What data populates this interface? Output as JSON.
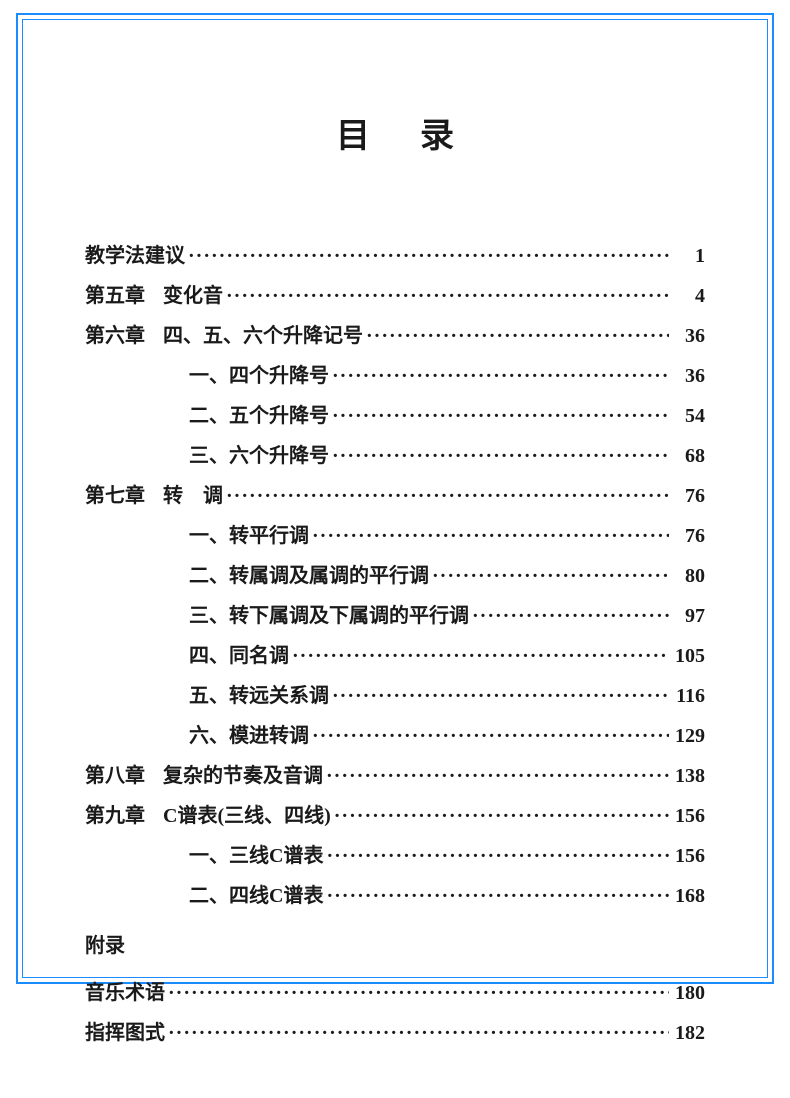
{
  "title": "目录",
  "entries": [
    {
      "type": "standalone",
      "label": "教学法建议",
      "page": "1"
    },
    {
      "type": "chapter",
      "chapter": "第五章",
      "title": "变化音",
      "page": "4"
    },
    {
      "type": "chapter",
      "chapter": "第六章",
      "title": "四、五、六个升降记号",
      "page": "36"
    },
    {
      "type": "sub",
      "title": "一、四个升降号",
      "page": "36"
    },
    {
      "type": "sub",
      "title": "二、五个升降号",
      "page": "54"
    },
    {
      "type": "sub",
      "title": "三、六个升降号",
      "page": "68"
    },
    {
      "type": "chapter",
      "chapter": "第七章",
      "title": "转　调",
      "page": "76"
    },
    {
      "type": "sub",
      "title": "一、转平行调",
      "page": "76"
    },
    {
      "type": "sub",
      "title": "二、转属调及属调的平行调",
      "page": "80"
    },
    {
      "type": "sub",
      "title": "三、转下属调及下属调的平行调",
      "page": "97"
    },
    {
      "type": "sub",
      "title": "四、同名调",
      "page": "105"
    },
    {
      "type": "sub",
      "title": "五、转远关系调",
      "page": "116"
    },
    {
      "type": "sub",
      "title": "六、模进转调",
      "page": "129"
    },
    {
      "type": "chapter",
      "chapter": "第八章",
      "title": "复杂的节奏及音调",
      "page": "138"
    },
    {
      "type": "chapter",
      "chapter": "第九章",
      "title": "C谱表(三线、四线)",
      "page": "156"
    },
    {
      "type": "sub",
      "title": "一、三线C谱表",
      "page": "156"
    },
    {
      "type": "sub",
      "title": "二、四线C谱表",
      "page": "168"
    }
  ],
  "appendix_header": "附录",
  "appendix_entries": [
    {
      "title": "音乐术语",
      "page": "180"
    },
    {
      "title": "指挥图式",
      "page": "182"
    }
  ],
  "colors": {
    "border": "#1a8cff",
    "text": "#1a1a1a",
    "background": "#ffffff"
  },
  "typography": {
    "title_fontsize": 34,
    "body_fontsize": 20,
    "font_family": "SimSun"
  }
}
